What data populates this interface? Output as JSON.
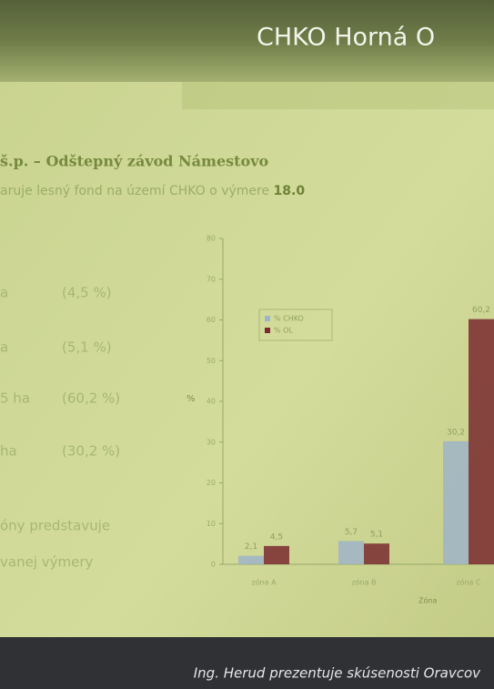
{
  "slide": {
    "banner_title": "CHKO Horná O",
    "heading": "š.p. – Odštepný závod Námestovo",
    "intro": "aruje lesný fond na území CHKO o výmere",
    "intro_bold": "18.0",
    "rows": [
      [
        "a",
        "(4,5 %)"
      ],
      [
        "a",
        "(5,1 %)"
      ],
      [
        "5 ha",
        "(60,2 %)"
      ],
      [
        "ha",
        "(30,2 %)"
      ]
    ],
    "closing": [
      "óny predstavuje",
      "vanej výmery"
    ]
  },
  "chart_data": {
    "type": "bar",
    "y_label": "%",
    "x_label": "Zóna",
    "categories": [
      "zóna A",
      "zóna B",
      "zóna C"
    ],
    "series": [
      {
        "name": "% CHKO",
        "color": "#9fb4c8",
        "values": [
          2.1,
          5.7,
          30.2
        ],
        "value_labels": [
          "2,1",
          "5,7",
          "30,2"
        ]
      },
      {
        "name": "% OL",
        "color": "#7a2a30",
        "values": [
          4.5,
          5.1,
          60.2
        ],
        "value_labels": [
          "4,5",
          "5,1",
          "60,2"
        ]
      }
    ],
    "ylim": [
      0,
      80
    ],
    "yticks": [
      0,
      10,
      20,
      30,
      40,
      50,
      60,
      70,
      80
    ]
  },
  "caption": "Ing. Herud prezentuje skúsenosti Oravcov"
}
